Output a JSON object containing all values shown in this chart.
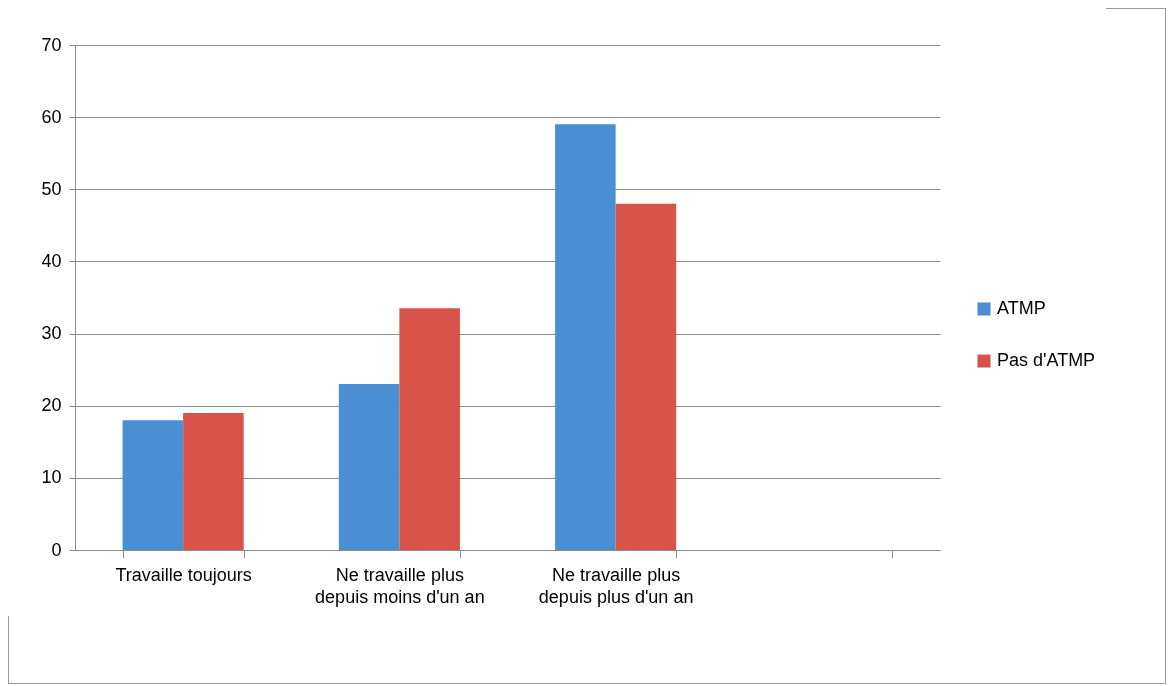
{
  "chart_data": {
    "type": "bar",
    "categories": [
      "Travaille toujours",
      "Ne travaille plus depuis moins d'un an",
      "Ne travaille plus depuis plus d'un an",
      null
    ],
    "series": [
      {
        "name": "ATMP",
        "color": "#4a8fd4",
        "values": [
          18,
          23,
          59,
          null
        ]
      },
      {
        "name": "Pas d'ATMP",
        "color": "#d8534a",
        "values": [
          19,
          33.5,
          48,
          null
        ]
      }
    ],
    "ylim": [
      0,
      70
    ],
    "yticks": [
      0,
      10,
      20,
      30,
      40,
      50,
      60,
      70
    ],
    "grid": "y",
    "legend": "right"
  }
}
